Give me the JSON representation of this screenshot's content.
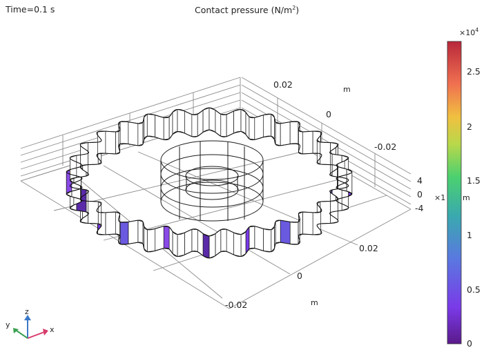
{
  "header": {
    "time_label": "Time=0.1 s",
    "title_prefix": "Contact pressure (N/m",
    "title_sup": "2",
    "title_suffix": ")"
  },
  "axes": {
    "y_ticks": [
      "0.02",
      "0",
      "-0.02"
    ],
    "y_unit": "m",
    "x_ticks": [
      "0.02",
      "0",
      "-0.02"
    ],
    "x_unit": "m",
    "z_ticks": [
      "4",
      "0",
      "-4"
    ],
    "z_multiplier": "×1",
    "z_unit": "m"
  },
  "triad": {
    "x": "x",
    "y": "y",
    "z": "z",
    "x_color": "#d63a6a",
    "y_color": "#3aa050",
    "z_color": "#3a78c8"
  },
  "colorbar": {
    "exponent_label": "×10",
    "exponent_sup": "4",
    "ticks": [
      "2.5",
      "2",
      "1.5",
      "1",
      "0.5",
      "0"
    ],
    "colormap": "Prism (purple-blue-green-yellow-red)"
  }
}
